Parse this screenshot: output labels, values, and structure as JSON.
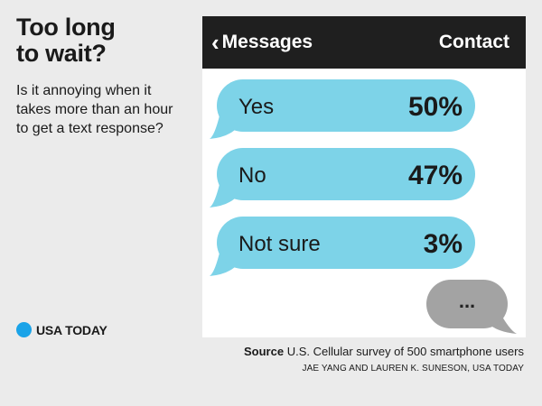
{
  "headline": {
    "line1": "Too long",
    "line2": "to wait?"
  },
  "question": "Is it annoying when it takes more than an hour to get a text response?",
  "brand": {
    "name": "USA TODAY",
    "dot_color": "#1aa3e8"
  },
  "phone": {
    "header_title": "Messages",
    "back_icon": "chevron-left-icon",
    "contact_label": "Contact",
    "typing_indicator": "..."
  },
  "chart_data": {
    "type": "bar",
    "categories": [
      "Yes",
      "No",
      "Not sure"
    ],
    "values": [
      50,
      47,
      3
    ],
    "value_labels": [
      "50%",
      "47%",
      "3%"
    ],
    "unit": "%"
  },
  "colors": {
    "bubble": "#7dd3e8",
    "typing_bubble": "#a3a3a3",
    "header_bg": "#1f1f1f",
    "background": "#ebebeb"
  },
  "source": {
    "label": "Source",
    "text": "U.S. Cellular survey of 500 smartphone users"
  },
  "credit": "JAE YANG AND LAUREN K. SUNESON, USA TODAY"
}
